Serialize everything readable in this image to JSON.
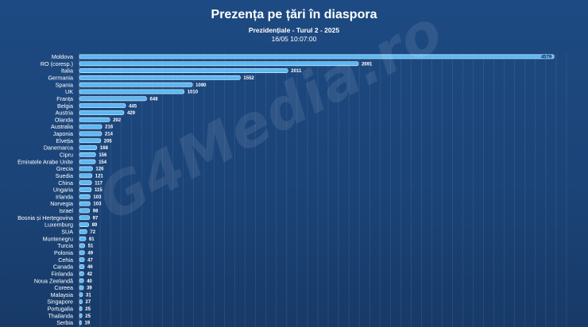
{
  "chart_data": {
    "type": "bar",
    "orientation": "horizontal",
    "title": "Prezența pe țări în diaspora",
    "subtitle": "Prezidențiale - Turul 2 - 2025",
    "timestamp": "16/05 10:07:00",
    "categories": [
      "Moldova",
      "RO (coresp.)",
      "Italia",
      "Germania",
      "Spania",
      "UK",
      "Franța",
      "Belgia",
      "Austria",
      "Olanda",
      "Australia",
      "Japonia",
      "Elveția",
      "Danemarca",
      "Cipru",
      "Emiratele Arabe Unite",
      "Grecia",
      "Suedia",
      "China",
      "Ungaria",
      "Irlanda",
      "Norvegia",
      "Israel",
      "Bosnia și Herțegovina",
      "Luxemburg",
      "SUA",
      "Muntenegru",
      "Turcia",
      "Polonia",
      "Cehia",
      "Canada",
      "Finlanda",
      "Noua Zeelandă",
      "Coreea",
      "Malaysia",
      "Singapore",
      "Portugalia",
      "Thailanda",
      "Serbia"
    ],
    "values": [
      4579,
      2691,
      2011,
      1552,
      1090,
      1010,
      648,
      445,
      429,
      292,
      216,
      214,
      205,
      168,
      156,
      154,
      126,
      121,
      117,
      115,
      103,
      103,
      98,
      97,
      89,
      72,
      61,
      51,
      49,
      47,
      46,
      42,
      40,
      39,
      31,
      27,
      25,
      25,
      19
    ],
    "xlim": [
      0,
      4700
    ],
    "grid": true,
    "colors": {
      "bar": "#5cb8f2",
      "bar_border": "#e6f5ff",
      "background": "#1b4478"
    }
  },
  "watermark": "G4Media.ro"
}
